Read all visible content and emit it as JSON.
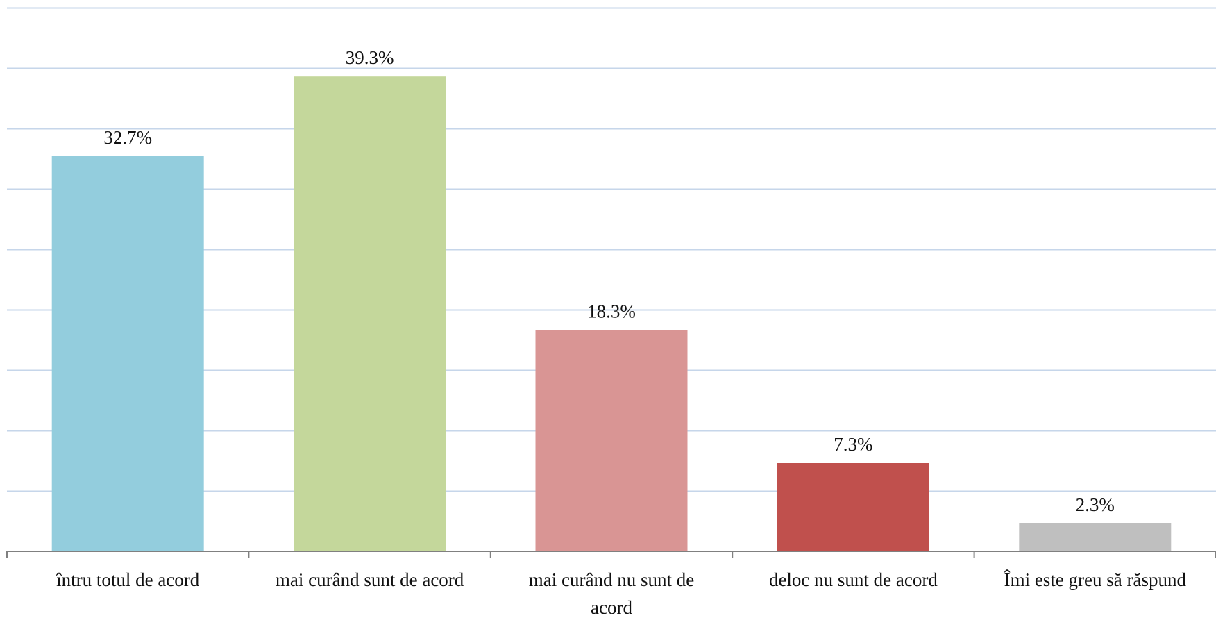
{
  "chart_data": {
    "type": "bar",
    "categories": [
      [
        "întru totul de acord"
      ],
      [
        "mai curând sunt de acord"
      ],
      [
        "mai curând nu sunt de",
        "acord"
      ],
      [
        "deloc nu sunt de acord"
      ],
      [
        "Îmi este greu să răspund"
      ]
    ],
    "values": [
      32.7,
      39.3,
      18.3,
      7.3,
      2.3
    ],
    "data_labels": [
      "32.7%",
      "39.3%",
      "18.3%",
      "7.3%",
      "2.3%"
    ],
    "colors": [
      "#93cddd",
      "#c4d79b",
      "#d99594",
      "#c0504d",
      "#bfbfbf"
    ],
    "ylim": [
      0,
      45
    ],
    "y_major_step": 5,
    "grid": true,
    "title": "",
    "xlabel": "",
    "ylabel": ""
  }
}
